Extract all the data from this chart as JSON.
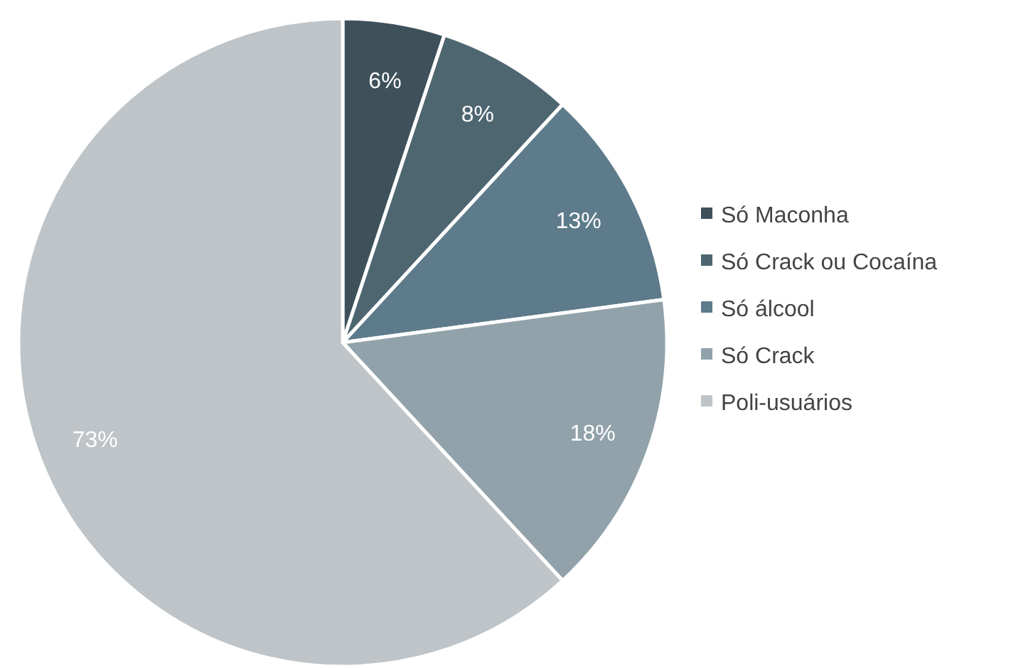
{
  "chart_data": {
    "type": "pie",
    "categories": [
      "Só Maconha",
      "Só Crack ou Cocaína",
      "Só álcool",
      "Só Crack",
      "Poli-usuários"
    ],
    "values": [
      6,
      8,
      13,
      18,
      73
    ],
    "value_labels": [
      "6%",
      "8%",
      "13%",
      "18%",
      "73%"
    ],
    "colors": [
      "#3e515b",
      "#4e6670",
      "#5d7b8a",
      "#92a2aa",
      "#bec4c7"
    ],
    "legend": "right"
  }
}
